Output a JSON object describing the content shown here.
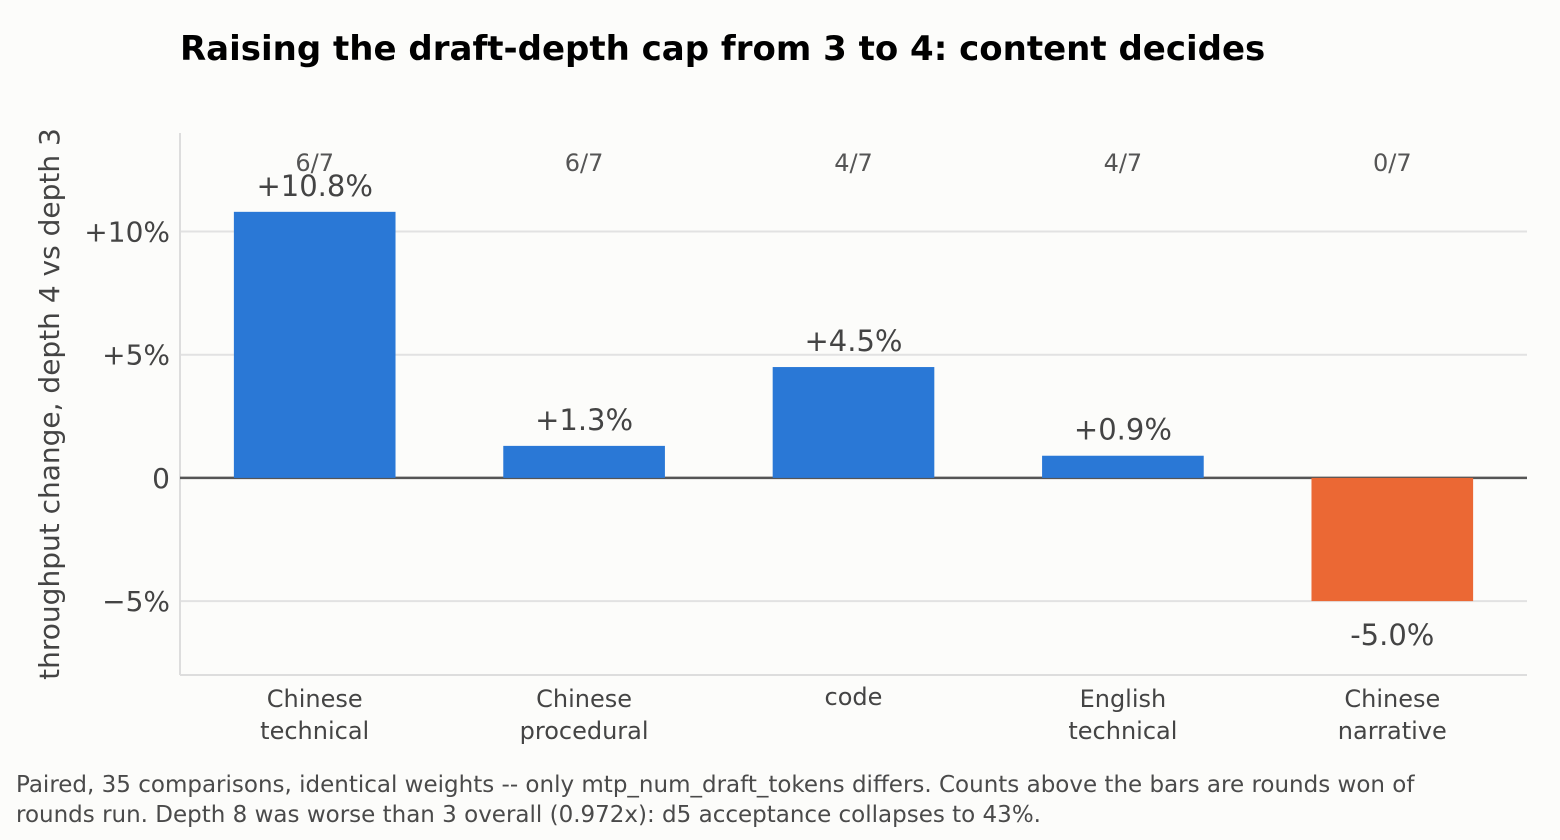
{
  "chart_data": {
    "type": "bar",
    "title": "Raising the draft-depth cap from 3 to 4: content decides",
    "ylabel": "throughput change, depth 4 vs depth 3",
    "xlabel": "",
    "categories": [
      [
        "Chinese",
        "technical"
      ],
      [
        "Chinese",
        "procedural"
      ],
      [
        "code"
      ],
      [
        "English",
        "technical"
      ],
      [
        "Chinese",
        "narrative"
      ]
    ],
    "values": [
      10.8,
      1.3,
      4.5,
      0.9,
      -5.0
    ],
    "value_labels": [
      "+10.8%",
      "+1.3%",
      "+4.5%",
      "+0.9%",
      "-5.0%"
    ],
    "rounds_won": [
      "6/7",
      "6/7",
      "4/7",
      "4/7",
      "0/7"
    ],
    "ylim": [
      -8,
      14
    ],
    "yticks": [
      {
        "value": -5,
        "label": "−5%"
      },
      {
        "value": 0,
        "label": "0"
      },
      {
        "value": 5,
        "label": "+5%"
      },
      {
        "value": 10,
        "label": "+10%"
      }
    ],
    "grid": "horizontal",
    "colors": {
      "positive": "#2a78d6",
      "negative": "#eb6834",
      "grid": "#e2e2e2",
      "zero_line": "#555555"
    }
  },
  "footnote": "Paired, 35 comparisons, identical weights -- only mtp_num_draft_tokens differs. Counts above the bars are rounds won of rounds run. Depth 8 was worse than 3 overall (0.972x): d5 acceptance collapses to 43%."
}
